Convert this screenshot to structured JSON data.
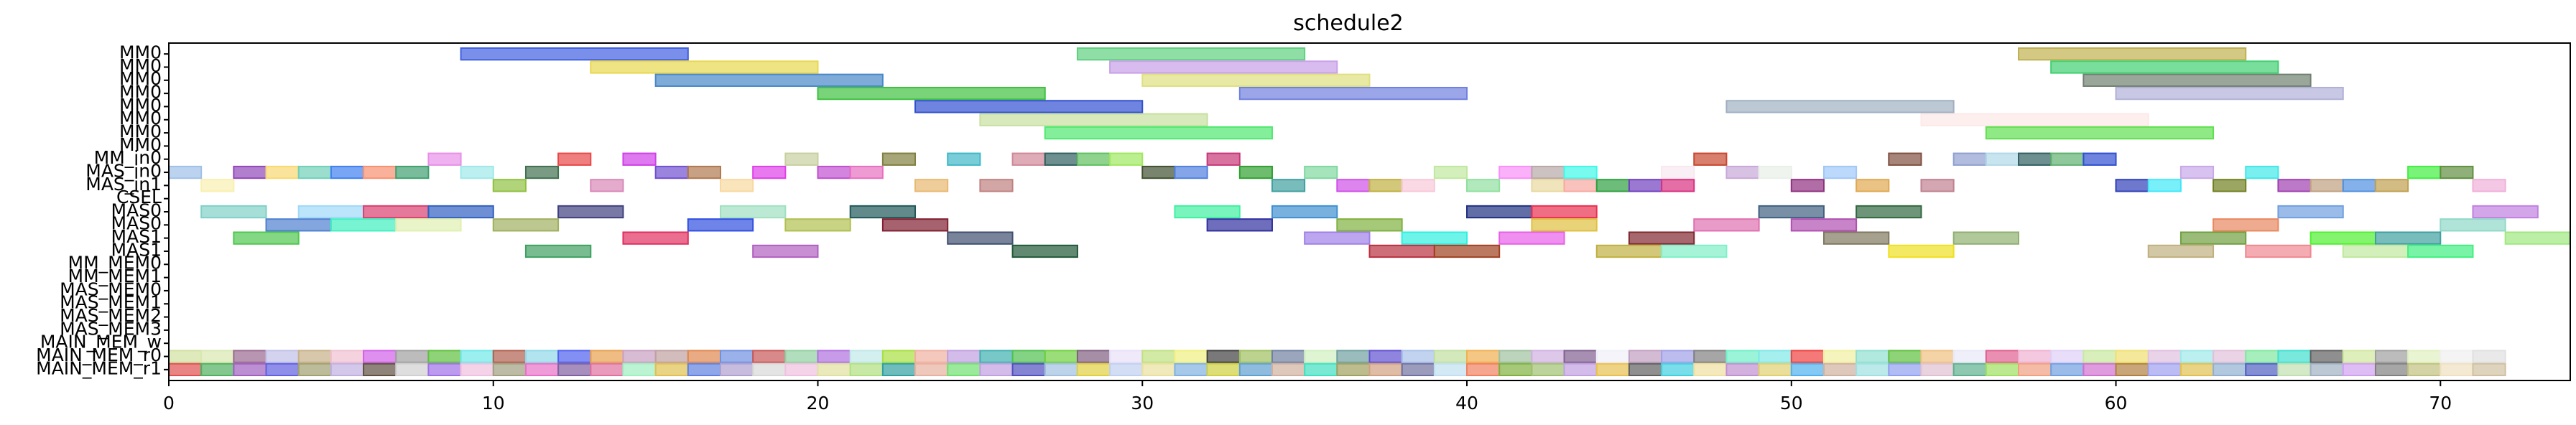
{
  "chart_data": {
    "type": "gantt",
    "title": "schedule2",
    "xlabel": "",
    "ylabel": "",
    "xlim": [
      0,
      74
    ],
    "x_ticks": [
      0,
      10,
      20,
      30,
      40,
      50,
      60,
      70
    ],
    "grid": false,
    "rows": [
      "MM0",
      "MM0",
      "MM0",
      "MM0",
      "MM0",
      "MM0",
      "MM0",
      "MM0",
      "MM_in0",
      "MAS_in0",
      "MAS_in1",
      "CSEL",
      "MAS0",
      "MAS0",
      "MAS1",
      "MAS1",
      "MM_MEM0",
      "MM_MEM1",
      "MAS_MEM0",
      "MAS_MEM1",
      "MAS_MEM2",
      "MAS_MEM3",
      "MAIN_MEM_w",
      "MAIN_MEM_r0",
      "MAIN_MEM_r1"
    ],
    "tasks": [
      {
        "row": 0,
        "start": 9,
        "end": 16,
        "color": "#4060e0"
      },
      {
        "row": 0,
        "start": 28,
        "end": 35,
        "color": "#60d080"
      },
      {
        "row": 0,
        "start": 57,
        "end": 64,
        "color": "#c0b050"
      },
      {
        "row": 1,
        "start": 13,
        "end": 20,
        "color": "#e8d850"
      },
      {
        "row": 1,
        "start": 29,
        "end": 36,
        "color": "#c8a0e8"
      },
      {
        "row": 1,
        "start": 58,
        "end": 65,
        "color": "#40d070"
      },
      {
        "row": 2,
        "start": 15,
        "end": 22,
        "color": "#4888c8"
      },
      {
        "row": 2,
        "start": 30,
        "end": 37,
        "color": "#e0e080"
      },
      {
        "row": 2,
        "start": 59,
        "end": 66,
        "color": "#708070"
      },
      {
        "row": 3,
        "start": 20,
        "end": 27,
        "color": "#40c040"
      },
      {
        "row": 3,
        "start": 33,
        "end": 40,
        "color": "#7080e0"
      },
      {
        "row": 3,
        "start": 60,
        "end": 67,
        "color": "#b0b0d8"
      },
      {
        "row": 4,
        "start": 23,
        "end": 30,
        "color": "#3050d0"
      },
      {
        "row": 4,
        "start": 48,
        "end": 55,
        "color": "#a0b0c0"
      },
      {
        "row": 5,
        "start": 25,
        "end": 32,
        "color": "#c8e0a0"
      },
      {
        "row": 5,
        "start": 54,
        "end": 61,
        "color": "#fde8e8"
      },
      {
        "row": 6,
        "start": 27,
        "end": 34,
        "color": "#50e870"
      },
      {
        "row": 6,
        "start": 56,
        "end": 63,
        "color": "#60e050"
      },
      {
        "row": 8,
        "start": 8,
        "end": 9,
        "color": "#e890e8"
      },
      {
        "row": 8,
        "start": 12,
        "end": 13,
        "color": "#e84848"
      },
      {
        "row": 8,
        "start": 14,
        "end": 15,
        "color": "#d040e8"
      },
      {
        "row": 8,
        "start": 19,
        "end": 20,
        "color": "#c8d0a0"
      },
      {
        "row": 8,
        "start": 22,
        "end": 23,
        "color": "#808040"
      },
      {
        "row": 8,
        "start": 24,
        "end": 25,
        "color": "#40b8c8"
      },
      {
        "row": 8,
        "start": 26,
        "end": 27,
        "color": "#d08898"
      },
      {
        "row": 8,
        "start": 27,
        "end": 28,
        "color": "#306060"
      },
      {
        "row": 8,
        "start": 28,
        "end": 29,
        "color": "#60c060"
      },
      {
        "row": 8,
        "start": 29,
        "end": 30,
        "color": "#a0e860"
      },
      {
        "row": 8,
        "start": 32,
        "end": 33,
        "color": "#c83878"
      },
      {
        "row": 8,
        "start": 47,
        "end": 48,
        "color": "#c84830"
      },
      {
        "row": 8,
        "start": 53,
        "end": 54,
        "color": "#805040"
      },
      {
        "row": 8,
        "start": 55,
        "end": 56,
        "color": "#90a0d0"
      },
      {
        "row": 8,
        "start": 56,
        "end": 57,
        "color": "#b0d8e8"
      },
      {
        "row": 8,
        "start": 57,
        "end": 58,
        "color": "#306060"
      },
      {
        "row": 8,
        "start": 58,
        "end": 59,
        "color": "#60b070"
      },
      {
        "row": 8,
        "start": 59,
        "end": 60,
        "color": "#3050d0"
      },
      {
        "row": 9,
        "start": 0,
        "end": 1,
        "color": "#a0c0e8"
      },
      {
        "row": 9,
        "start": 2,
        "end": 3,
        "color": "#9048b8"
      },
      {
        "row": 9,
        "start": 3,
        "end": 4,
        "color": "#f8d870"
      },
      {
        "row": 9,
        "start": 4,
        "end": 5,
        "color": "#70d0b8"
      },
      {
        "row": 9,
        "start": 5,
        "end": 6,
        "color": "#4080f0"
      },
      {
        "row": 9,
        "start": 6,
        "end": 7,
        "color": "#f89070"
      },
      {
        "row": 9,
        "start": 7,
        "end": 8,
        "color": "#40a070"
      },
      {
        "row": 9,
        "start": 9,
        "end": 10,
        "color": "#a0e8e8"
      },
      {
        "row": 9,
        "start": 11,
        "end": 12,
        "color": "#407050"
      },
      {
        "row": 9,
        "start": 15,
        "end": 16,
        "color": "#7050d0"
      },
      {
        "row": 9,
        "start": 16,
        "end": 17,
        "color": "#b07850"
      },
      {
        "row": 9,
        "start": 18,
        "end": 19,
        "color": "#e040e8"
      },
      {
        "row": 9,
        "start": 20,
        "end": 21,
        "color": "#c050d0"
      },
      {
        "row": 9,
        "start": 21,
        "end": 22,
        "color": "#e870c0"
      },
      {
        "row": 9,
        "start": 30,
        "end": 31,
        "color": "#405030"
      },
      {
        "row": 9,
        "start": 31,
        "end": 32,
        "color": "#5080e0"
      },
      {
        "row": 9,
        "start": 33,
        "end": 34,
        "color": "#30a030"
      },
      {
        "row": 9,
        "start": 35,
        "end": 36,
        "color": "#80d8a0"
      },
      {
        "row": 9,
        "start": 39,
        "end": 40,
        "color": "#c0e8a0"
      },
      {
        "row": 9,
        "start": 41,
        "end": 42,
        "color": "#f890f8"
      },
      {
        "row": 9,
        "start": 42,
        "end": 43,
        "color": "#b8a8a8"
      },
      {
        "row": 9,
        "start": 43,
        "end": 44,
        "color": "#40f8e8"
      },
      {
        "row": 9,
        "start": 46,
        "end": 47,
        "color": "#f8e8f0"
      },
      {
        "row": 9,
        "start": 48,
        "end": 49,
        "color": "#c8a8d8"
      },
      {
        "row": 9,
        "start": 49,
        "end": 50,
        "color": "#e8f0e8"
      },
      {
        "row": 9,
        "start": 51,
        "end": 52,
        "color": "#a0c8f8"
      },
      {
        "row": 9,
        "start": 62,
        "end": 63,
        "color": "#c8a8e8"
      },
      {
        "row": 9,
        "start": 64,
        "end": 65,
        "color": "#40e8e8"
      },
      {
        "row": 9,
        "start": 69,
        "end": 70,
        "color": "#40f040"
      },
      {
        "row": 9,
        "start": 70,
        "end": 71,
        "color": "#609040"
      },
      {
        "row": 10,
        "start": 1,
        "end": 2,
        "color": "#f8f0b0"
      },
      {
        "row": 10,
        "start": 10,
        "end": 11,
        "color": "#90c040"
      },
      {
        "row": 10,
        "start": 13,
        "end": 14,
        "color": "#d888b8"
      },
      {
        "row": 10,
        "start": 17,
        "end": 18,
        "color": "#f8d8a0"
      },
      {
        "row": 10,
        "start": 23,
        "end": 24,
        "color": "#e8b870"
      },
      {
        "row": 10,
        "start": 25,
        "end": 26,
        "color": "#c08080"
      },
      {
        "row": 10,
        "start": 34,
        "end": 35,
        "color": "#40a0a0"
      },
      {
        "row": 10,
        "start": 36,
        "end": 37,
        "color": "#d050e8"
      },
      {
        "row": 10,
        "start": 37,
        "end": 38,
        "color": "#c0b040"
      },
      {
        "row": 10,
        "start": 38,
        "end": 39,
        "color": "#f8c8d8"
      },
      {
        "row": 10,
        "start": 40,
        "end": 41,
        "color": "#90e0a0"
      },
      {
        "row": 10,
        "start": 42,
        "end": 43,
        "color": "#e8d8a0"
      },
      {
        "row": 10,
        "start": 43,
        "end": 44,
        "color": "#f8a8a0"
      },
      {
        "row": 10,
        "start": 44,
        "end": 45,
        "color": "#30a040"
      },
      {
        "row": 10,
        "start": 45,
        "end": 46,
        "color": "#7040c0"
      },
      {
        "row": 10,
        "start": 46,
        "end": 47,
        "color": "#d83080"
      },
      {
        "row": 10,
        "start": 50,
        "end": 51,
        "color": "#903080"
      },
      {
        "row": 10,
        "start": 52,
        "end": 53,
        "color": "#e0a850"
      },
      {
        "row": 10,
        "start": 54,
        "end": 55,
        "color": "#c08090"
      },
      {
        "row": 10,
        "start": 60,
        "end": 61,
        "color": "#3040b8"
      },
      {
        "row": 10,
        "start": 61,
        "end": 62,
        "color": "#40e8f8"
      },
      {
        "row": 10,
        "start": 63,
        "end": 64,
        "color": "#708020"
      },
      {
        "row": 10,
        "start": 65,
        "end": 66,
        "color": "#a040b0"
      },
      {
        "row": 10,
        "start": 66,
        "end": 67,
        "color": "#c0a080"
      },
      {
        "row": 10,
        "start": 67,
        "end": 68,
        "color": "#5090e0"
      },
      {
        "row": 10,
        "start": 68,
        "end": 69,
        "color": "#c0a050"
      },
      {
        "row": 10,
        "start": 71,
        "end": 72,
        "color": "#f0b0d8"
      },
      {
        "row": 12,
        "start": 1,
        "end": 3,
        "color": "#80d0c8"
      },
      {
        "row": 12,
        "start": 4,
        "end": 6,
        "color": "#a0d8f8"
      },
      {
        "row": 12,
        "start": 6,
        "end": 8,
        "color": "#d84070"
      },
      {
        "row": 12,
        "start": 8,
        "end": 10,
        "color": "#3060c0"
      },
      {
        "row": 12,
        "start": 12,
        "end": 14,
        "color": "#404080"
      },
      {
        "row": 12,
        "start": 17,
        "end": 19,
        "color": "#a0e0c0"
      },
      {
        "row": 12,
        "start": 21,
        "end": 23,
        "color": "#205858"
      },
      {
        "row": 12,
        "start": 31,
        "end": 33,
        "color": "#40f0a0"
      },
      {
        "row": 12,
        "start": 34,
        "end": 36,
        "color": "#4090d0"
      },
      {
        "row": 12,
        "start": 40,
        "end": 42,
        "color": "#203080"
      },
      {
        "row": 12,
        "start": 42,
        "end": 44,
        "color": "#e83050"
      },
      {
        "row": 12,
        "start": 49,
        "end": 51,
        "color": "#406080"
      },
      {
        "row": 12,
        "start": 52,
        "end": 54,
        "color": "#306840"
      },
      {
        "row": 12,
        "start": 65,
        "end": 67,
        "color": "#70a0e0"
      },
      {
        "row": 12,
        "start": 71,
        "end": 73,
        "color": "#c080e0"
      },
      {
        "row": 13,
        "start": 3,
        "end": 5,
        "color": "#5080d0"
      },
      {
        "row": 13,
        "start": 5,
        "end": 7,
        "color": "#40f0c0"
      },
      {
        "row": 13,
        "start": 7,
        "end": 9,
        "color": "#e0f0b0"
      },
      {
        "row": 13,
        "start": 10,
        "end": 12,
        "color": "#a0b060"
      },
      {
        "row": 13,
        "start": 16,
        "end": 18,
        "color": "#3050e0"
      },
      {
        "row": 13,
        "start": 19,
        "end": 21,
        "color": "#b0c050"
      },
      {
        "row": 13,
        "start": 22,
        "end": 24,
        "color": "#802030"
      },
      {
        "row": 13,
        "start": 32,
        "end": 34,
        "color": "#3030a0"
      },
      {
        "row": 13,
        "start": 36,
        "end": 38,
        "color": "#80b040"
      },
      {
        "row": 13,
        "start": 42,
        "end": 44,
        "color": "#e0c040"
      },
      {
        "row": 13,
        "start": 47,
        "end": 49,
        "color": "#e070b0"
      },
      {
        "row": 13,
        "start": 50,
        "end": 52,
        "color": "#b050b0"
      },
      {
        "row": 13,
        "start": 63,
        "end": 65,
        "color": "#e88860"
      },
      {
        "row": 13,
        "start": 70,
        "end": 72,
        "color": "#90d8c8"
      },
      {
        "row": 14,
        "start": 2,
        "end": 4,
        "color": "#50c850"
      },
      {
        "row": 14,
        "start": 14,
        "end": 16,
        "color": "#e03060"
      },
      {
        "row": 14,
        "start": 24,
        "end": 26,
        "color": "#405070"
      },
      {
        "row": 14,
        "start": 35,
        "end": 37,
        "color": "#a080e8"
      },
      {
        "row": 14,
        "start": 38,
        "end": 40,
        "color": "#30f0e0"
      },
      {
        "row": 14,
        "start": 41,
        "end": 43,
        "color": "#e860e8"
      },
      {
        "row": 14,
        "start": 45,
        "end": 47,
        "color": "#802830"
      },
      {
        "row": 14,
        "start": 51,
        "end": 53,
        "color": "#807860"
      },
      {
        "row": 14,
        "start": 55,
        "end": 57,
        "color": "#90b070"
      },
      {
        "row": 14,
        "start": 62,
        "end": 64,
        "color": "#70a040"
      },
      {
        "row": 14,
        "start": 66,
        "end": 68,
        "color": "#50f030"
      },
      {
        "row": 14,
        "start": 68,
        "end": 70,
        "color": "#40a0a0"
      },
      {
        "row": 14,
        "start": 72,
        "end": 74,
        "color": "#a0e880"
      },
      {
        "row": 15,
        "start": 11,
        "end": 13,
        "color": "#40a060"
      },
      {
        "row": 15,
        "start": 18,
        "end": 20,
        "color": "#b060c0"
      },
      {
        "row": 15,
        "start": 26,
        "end": 28,
        "color": "#205838"
      },
      {
        "row": 15,
        "start": 37,
        "end": 39,
        "color": "#b83040"
      },
      {
        "row": 15,
        "start": 39,
        "end": 41,
        "color": "#a04020"
      },
      {
        "row": 15,
        "start": 44,
        "end": 46,
        "color": "#c0b040"
      },
      {
        "row": 15,
        "start": 46,
        "end": 48,
        "color": "#80f0c8"
      },
      {
        "row": 15,
        "start": 53,
        "end": 55,
        "color": "#f0e020"
      },
      {
        "row": 15,
        "start": 61,
        "end": 63,
        "color": "#c0b080"
      },
      {
        "row": 15,
        "start": 64,
        "end": 66,
        "color": "#f08890"
      },
      {
        "row": 15,
        "start": 67,
        "end": 69,
        "color": "#c0e8a0"
      },
      {
        "row": 15,
        "start": 69,
        "end": 71,
        "color": "#40f080"
      }
    ],
    "mem_colors_r0": [
      "#d0e0a0",
      "#d8e8b0",
      "#9a6a90",
      "#c0c0e8",
      "#c8b088",
      "#f0c0d0",
      "#d060e8",
      "#a0a0a0",
      "#60c040",
      "#70e8e8",
      "#b06050",
      "#90d8e8",
      "#5060f0",
      "#e8a050",
      "#c8a0c0",
      "#c0a0a0",
      "#e08850",
      "#7090e0",
      "#c85858",
      "#90d0a0",
      "#b070e0",
      "#c0e8e8",
      "#a8e040",
      "#f0b0a0",
      "#c0a0e0",
      "#40b0b0",
      "#50c050",
      "#70d040",
      "#806080",
      "#e8e0f8",
      "#c0e080",
      "#f0f080",
      "#404040",
      "#a0c060",
      "#7080a0",
      "#d0f0c0",
      "#70a0a0",
      "#6050d0",
      "#a8c0e8",
      "#c0e0a0",
      "#f0b050",
      "#a0c0a0",
      "#d0b0e0",
      "#806090",
      "#f0f0f8",
      "#c0a0c0",
      "#a0a0e8",
      "#808080",
      "#70f0c8",
      "#80e8e8",
      "#f04040",
      "#f0f0a0",
      "#90e0d0",
      "#60c040",
      "#f0c080",
      "#e8e8f8",
      "#e06090",
      "#f0b0d0",
      "#e0d0f8",
      "#c8e8a0",
      "#f0e070",
      "#e0c0e0",
      "#a0e8e8",
      "#e0c0d8",
      "#80e8a0",
      "#40e0d0",
      "#606060",
      "#d0e8a0",
      "#a0a0a0",
      "#e0f0c0",
      "#f0f0f0",
      "#e0e0e0",
      "#d0d0d0",
      "#c0c0c0"
    ],
    "mem_colors_r1": [
      "#e05050",
      "#50b060",
      "#a060c0",
      "#6060e0",
      "#a0a070",
      "#c0b0e0",
      "#605040",
      "#d0d0d0",
      "#a070e8",
      "#f0c0e0",
      "#a0a080",
      "#e870c8",
      "#8060a0",
      "#e070a0",
      "#a0f0c0",
      "#e0c050",
      "#6080e0",
      "#b0a0d0",
      "#d8d8d8",
      "#f0c0e0",
      "#e0e0a0",
      "#b0e080",
      "#30a0a0",
      "#e8b0a0",
      "#70e070",
      "#c0a0e0",
      "#5050c0",
      "#a0c0e0",
      "#e0d040",
      "#c0d0f0",
      "#e8e0a0",
      "#80b0e0",
      "#d0d040",
      "#60a0d0",
      "#d0b0a0",
      "#40e0c0",
      "#a0a060",
      "#d0a080",
      "#7070a0",
      "#c0e0f0",
      "#f08060",
      "#80b040",
      "#a0c070",
      "#c0a0e0",
      "#e8c050",
      "#606060",
      "#40d0e0",
      "#f0e0a0",
      "#c090d0",
      "#e0d070",
      "#50b0f0",
      "#d0b0a0",
      "#a0e0e0",
      "#90a0f0",
      "#e0c0d0",
      "#60b090",
      "#a0e060",
      "#f0a080",
      "#70a0e0",
      "#d070d0",
      "#b08040",
      "#a0a0f0",
      "#e0c050",
      "#90b0d0",
      "#5060c0",
      "#c0e0b0",
      "#a0b0c0",
      "#d0a0f0",
      "#808080",
      "#c0c080",
      "#f0e0c0",
      "#d0c0a0",
      "#b0b0b0",
      "#a0a0a0"
    ]
  }
}
